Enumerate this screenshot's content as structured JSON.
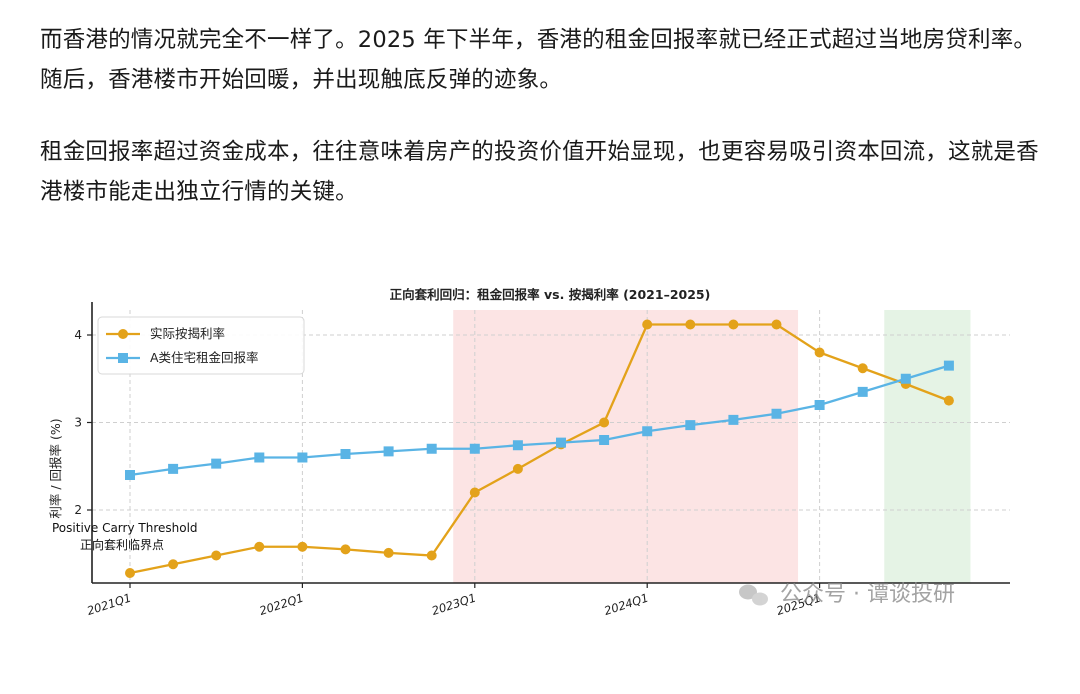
{
  "article": {
    "paragraph_1": "而香港的情况就完全不一样了。2025 年下半年，香港的租金回报率就已经正式超过当地房贷利率。随后，香港楼市开始回暖，并出现触底反弹的迹象。",
    "paragraph_2": "租金回报率超过资金成本，往往意味着房产的投资价值开始显现，也更容易吸引资本回流，这就是香港楼市能走出独立行情的关键。"
  },
  "watermark": {
    "text": "公众号 · 谭谈投研",
    "icon": "wechat-icon"
  },
  "colors": {
    "mortgage": "#E3A21A",
    "rental": "#5AB4E5",
    "shade_pink": "#FCE4E4",
    "shade_green": "#E5F3E5"
  },
  "chart_data": {
    "type": "line",
    "title": "正向套利回归：租金回报率 vs. 按揭利率 (2021–2025)",
    "ylabel": "利率 / 回报率 (%)",
    "xlabel": "",
    "ylim": [
      1.25,
      4.3
    ],
    "yticks": [
      2,
      3,
      4
    ],
    "grid": true,
    "legend": "top-left",
    "x_tick_labels": [
      "2021Q1",
      "2022Q1",
      "2023Q1",
      "2024Q1",
      "2025Q1"
    ],
    "x_tick_positions": [
      0,
      4,
      8,
      12,
      16
    ],
    "shaded_regions": [
      {
        "from": 7.5,
        "to": 15.5,
        "color": "pink"
      },
      {
        "from": 17.5,
        "to": 19.5,
        "color": "green"
      }
    ],
    "threshold_label": [
      "Positive Carry Threshold",
      "正向套利临界点"
    ],
    "series": [
      {
        "name": "实际按揭利率",
        "marker": "circle",
        "color": "#E3A21A",
        "x": [
          0,
          1,
          2,
          3,
          4,
          5,
          6,
          7,
          8,
          9,
          10,
          11,
          12,
          13,
          14,
          15,
          16,
          17,
          18,
          19
        ],
        "values": [
          1.28,
          1.38,
          1.48,
          1.58,
          1.58,
          1.55,
          1.51,
          1.48,
          2.2,
          2.47,
          2.75,
          3.0,
          4.12,
          4.12,
          4.12,
          4.12,
          3.8,
          3.62,
          3.44,
          3.25
        ]
      },
      {
        "name": "A类住宅租金回报率",
        "marker": "square",
        "color": "#5AB4E5",
        "x": [
          0,
          1,
          2,
          3,
          4,
          5,
          6,
          7,
          8,
          9,
          10,
          11,
          12,
          13,
          14,
          15,
          16,
          17,
          18,
          19
        ],
        "values": [
          2.4,
          2.47,
          2.53,
          2.6,
          2.6,
          2.64,
          2.67,
          2.7,
          2.7,
          2.74,
          2.77,
          2.8,
          2.9,
          2.97,
          3.03,
          3.1,
          3.2,
          3.35,
          3.5,
          3.65
        ]
      }
    ]
  }
}
